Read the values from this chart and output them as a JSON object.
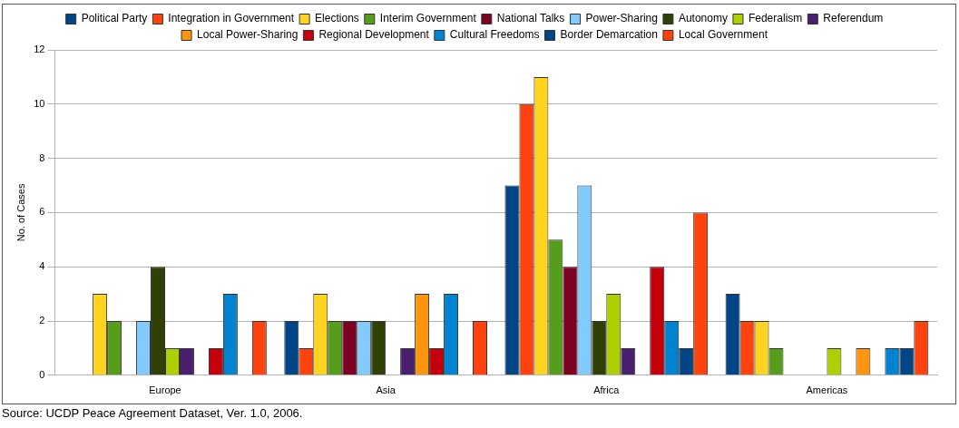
{
  "chart_data": {
    "type": "bar",
    "ylabel": "No. of Cases",
    "categories": [
      "Europe",
      "Asia",
      "Africa",
      "Americas"
    ],
    "series": [
      {
        "name": "Political Party",
        "color": "#004586",
        "values": [
          0,
          2,
          7,
          3
        ]
      },
      {
        "name": "Integration in Government",
        "color": "#ff420e",
        "values": [
          0,
          1,
          10,
          2
        ]
      },
      {
        "name": "Elections",
        "color": "#ffd320",
        "values": [
          3,
          3,
          11,
          2
        ]
      },
      {
        "name": "Interim Government",
        "color": "#579d1c",
        "values": [
          2,
          2,
          5,
          1
        ]
      },
      {
        "name": "National Talks",
        "color": "#7e0021",
        "values": [
          0,
          2,
          4,
          0
        ]
      },
      {
        "name": "Power-Sharing",
        "color": "#83caff",
        "values": [
          2,
          2,
          7,
          0
        ]
      },
      {
        "name": "Autonomy",
        "color": "#314004",
        "values": [
          4,
          2,
          2,
          0
        ]
      },
      {
        "name": "Federalism",
        "color": "#aecf00",
        "values": [
          1,
          0,
          3,
          1
        ]
      },
      {
        "name": "Referendum",
        "color": "#4b1f6f",
        "values": [
          1,
          1,
          1,
          0
        ]
      },
      {
        "name": "Local Power-Sharing",
        "color": "#ff950e",
        "values": [
          0,
          3,
          0,
          1
        ]
      },
      {
        "name": "Regional Development",
        "color": "#c5000b",
        "values": [
          1,
          1,
          4,
          0
        ]
      },
      {
        "name": "Cultural Freedoms",
        "color": "#0084d1",
        "values": [
          3,
          3,
          2,
          1
        ]
      },
      {
        "name": "Border Demarcation",
        "color": "#004586",
        "values": [
          0,
          0,
          1,
          1
        ]
      },
      {
        "name": "Local Government",
        "color": "#ff420e",
        "values": [
          2,
          2,
          6,
          2
        ]
      }
    ],
    "ylim": [
      0,
      12
    ],
    "yticks": [
      0,
      2,
      4,
      6,
      8,
      10,
      12
    ],
    "grid": "y",
    "legend": "top",
    "annotations": [
      "Source: UCDP Peace Agreement Dataset, Ver. 1.0, 2006."
    ]
  }
}
